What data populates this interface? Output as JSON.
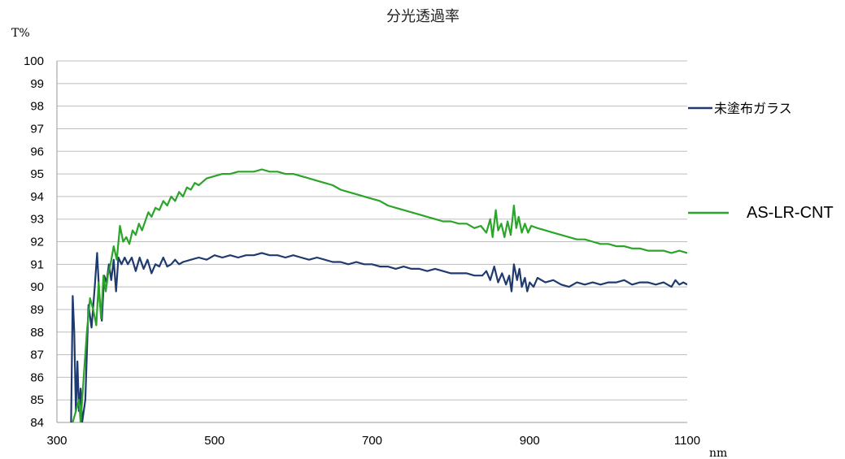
{
  "chart_data": {
    "type": "line",
    "title": "分光透過率",
    "ylabel": "T%",
    "xlabel": "nm",
    "xlim": [
      300,
      1100
    ],
    "ylim": [
      84,
      100
    ],
    "x_ticks": [
      "300",
      "500",
      "700",
      "900",
      "1100"
    ],
    "y_ticks": [
      "84",
      "85",
      "86",
      "87",
      "88",
      "89",
      "90",
      "91",
      "92",
      "93",
      "94",
      "95",
      "96",
      "97",
      "98",
      "99",
      "100"
    ],
    "grid": "horizontal",
    "legend": "right",
    "series": [
      {
        "name": "未塗布ガラス",
        "color": "#1f3a6e",
        "points": [
          [
            318,
            84
          ],
          [
            320,
            89.6
          ],
          [
            322,
            88.0
          ],
          [
            324,
            84.5
          ],
          [
            326,
            86.7
          ],
          [
            328,
            84.5
          ],
          [
            330,
            85.5
          ],
          [
            332,
            84
          ],
          [
            336,
            85.0
          ],
          [
            340,
            89.2
          ],
          [
            344,
            88.2
          ],
          [
            348,
            90.0
          ],
          [
            351,
            91.5
          ],
          [
            354,
            89.5
          ],
          [
            357,
            88.5
          ],
          [
            360,
            90.5
          ],
          [
            363,
            90.2
          ],
          [
            366,
            91.0
          ],
          [
            369,
            90.3
          ],
          [
            372,
            91.2
          ],
          [
            375,
            89.8
          ],
          [
            378,
            91.3
          ],
          [
            382,
            91.0
          ],
          [
            386,
            91.3
          ],
          [
            390,
            91.0
          ],
          [
            395,
            91.3
          ],
          [
            400,
            90.7
          ],
          [
            405,
            91.3
          ],
          [
            410,
            90.8
          ],
          [
            415,
            91.2
          ],
          [
            420,
            90.6
          ],
          [
            425,
            91.0
          ],
          [
            430,
            90.9
          ],
          [
            435,
            91.3
          ],
          [
            440,
            90.9
          ],
          [
            445,
            91.0
          ],
          [
            450,
            91.2
          ],
          [
            455,
            91.0
          ],
          [
            460,
            91.1
          ],
          [
            470,
            91.2
          ],
          [
            480,
            91.3
          ],
          [
            490,
            91.2
          ],
          [
            500,
            91.4
          ],
          [
            510,
            91.3
          ],
          [
            520,
            91.4
          ],
          [
            530,
            91.3
          ],
          [
            540,
            91.4
          ],
          [
            550,
            91.4
          ],
          [
            560,
            91.5
          ],
          [
            570,
            91.4
          ],
          [
            580,
            91.4
          ],
          [
            590,
            91.3
          ],
          [
            600,
            91.4
          ],
          [
            610,
            91.3
          ],
          [
            620,
            91.2
          ],
          [
            630,
            91.3
          ],
          [
            640,
            91.2
          ],
          [
            650,
            91.1
          ],
          [
            660,
            91.1
          ],
          [
            670,
            91.0
          ],
          [
            680,
            91.1
          ],
          [
            690,
            91.0
          ],
          [
            700,
            91.0
          ],
          [
            710,
            90.9
          ],
          [
            720,
            90.9
          ],
          [
            730,
            90.8
          ],
          [
            740,
            90.9
          ],
          [
            750,
            90.8
          ],
          [
            760,
            90.8
          ],
          [
            770,
            90.7
          ],
          [
            780,
            90.8
          ],
          [
            790,
            90.7
          ],
          [
            800,
            90.6
          ],
          [
            810,
            90.6
          ],
          [
            820,
            90.6
          ],
          [
            830,
            90.5
          ],
          [
            840,
            90.5
          ],
          [
            845,
            90.7
          ],
          [
            850,
            90.3
          ],
          [
            855,
            90.9
          ],
          [
            860,
            90.2
          ],
          [
            865,
            90.6
          ],
          [
            870,
            90.1
          ],
          [
            874,
            90.5
          ],
          [
            877,
            89.8
          ],
          [
            880,
            91.0
          ],
          [
            884,
            90.3
          ],
          [
            887,
            90.8
          ],
          [
            890,
            90.0
          ],
          [
            894,
            90.4
          ],
          [
            897,
            89.8
          ],
          [
            900,
            90.2
          ],
          [
            905,
            90.0
          ],
          [
            910,
            90.4
          ],
          [
            920,
            90.2
          ],
          [
            930,
            90.3
          ],
          [
            940,
            90.1
          ],
          [
            950,
            90.0
          ],
          [
            960,
            90.2
          ],
          [
            970,
            90.1
          ],
          [
            980,
            90.2
          ],
          [
            990,
            90.1
          ],
          [
            1000,
            90.2
          ],
          [
            1010,
            90.2
          ],
          [
            1020,
            90.3
          ],
          [
            1030,
            90.1
          ],
          [
            1040,
            90.2
          ],
          [
            1050,
            90.2
          ],
          [
            1060,
            90.1
          ],
          [
            1070,
            90.2
          ],
          [
            1080,
            90.0
          ],
          [
            1085,
            90.3
          ],
          [
            1090,
            90.1
          ],
          [
            1095,
            90.2
          ],
          [
            1100,
            90.1
          ]
        ]
      },
      {
        "name": "AS-LR-CNT",
        "color": "#2aa52a",
        "points": [
          [
            320,
            84
          ],
          [
            324,
            84.5
          ],
          [
            328,
            85.0
          ],
          [
            330,
            84
          ],
          [
            334,
            86.0
          ],
          [
            338,
            88.0
          ],
          [
            342,
            89.5
          ],
          [
            346,
            89.0
          ],
          [
            350,
            88.3
          ],
          [
            353,
            90.2
          ],
          [
            356,
            88.6
          ],
          [
            359,
            90.5
          ],
          [
            362,
            89.8
          ],
          [
            365,
            90.6
          ],
          [
            368,
            91.0
          ],
          [
            372,
            91.8
          ],
          [
            376,
            91.2
          ],
          [
            380,
            92.7
          ],
          [
            384,
            92.0
          ],
          [
            388,
            92.2
          ],
          [
            392,
            91.9
          ],
          [
            396,
            92.5
          ],
          [
            400,
            92.3
          ],
          [
            404,
            92.8
          ],
          [
            408,
            92.5
          ],
          [
            412,
            92.9
          ],
          [
            416,
            93.3
          ],
          [
            420,
            93.1
          ],
          [
            425,
            93.5
          ],
          [
            430,
            93.4
          ],
          [
            435,
            93.8
          ],
          [
            440,
            93.6
          ],
          [
            445,
            94.0
          ],
          [
            450,
            93.8
          ],
          [
            455,
            94.2
          ],
          [
            460,
            94.0
          ],
          [
            465,
            94.4
          ],
          [
            470,
            94.3
          ],
          [
            475,
            94.6
          ],
          [
            480,
            94.5
          ],
          [
            490,
            94.8
          ],
          [
            500,
            94.9
          ],
          [
            510,
            95.0
          ],
          [
            520,
            95.0
          ],
          [
            530,
            95.1
          ],
          [
            540,
            95.1
          ],
          [
            550,
            95.1
          ],
          [
            560,
            95.2
          ],
          [
            570,
            95.1
          ],
          [
            580,
            95.1
          ],
          [
            590,
            95.0
          ],
          [
            600,
            95.0
          ],
          [
            610,
            94.9
          ],
          [
            620,
            94.8
          ],
          [
            630,
            94.7
          ],
          [
            640,
            94.6
          ],
          [
            650,
            94.5
          ],
          [
            660,
            94.3
          ],
          [
            670,
            94.2
          ],
          [
            680,
            94.1
          ],
          [
            690,
            94.0
          ],
          [
            700,
            93.9
          ],
          [
            710,
            93.8
          ],
          [
            720,
            93.6
          ],
          [
            730,
            93.5
          ],
          [
            740,
            93.4
          ],
          [
            750,
            93.3
          ],
          [
            760,
            93.2
          ],
          [
            770,
            93.1
          ],
          [
            780,
            93.0
          ],
          [
            790,
            92.9
          ],
          [
            800,
            92.9
          ],
          [
            810,
            92.8
          ],
          [
            820,
            92.8
          ],
          [
            830,
            92.6
          ],
          [
            838,
            92.7
          ],
          [
            845,
            92.4
          ],
          [
            850,
            93.0
          ],
          [
            853,
            92.2
          ],
          [
            857,
            93.4
          ],
          [
            860,
            92.5
          ],
          [
            864,
            92.8
          ],
          [
            868,
            92.2
          ],
          [
            872,
            92.9
          ],
          [
            876,
            92.3
          ],
          [
            880,
            93.6
          ],
          [
            883,
            92.6
          ],
          [
            886,
            93.1
          ],
          [
            890,
            92.4
          ],
          [
            894,
            92.8
          ],
          [
            898,
            92.4
          ],
          [
            902,
            92.7
          ],
          [
            910,
            92.6
          ],
          [
            920,
            92.5
          ],
          [
            930,
            92.4
          ],
          [
            940,
            92.3
          ],
          [
            950,
            92.2
          ],
          [
            960,
            92.1
          ],
          [
            970,
            92.1
          ],
          [
            980,
            92.0
          ],
          [
            990,
            91.9
          ],
          [
            1000,
            91.9
          ],
          [
            1010,
            91.8
          ],
          [
            1020,
            91.8
          ],
          [
            1030,
            91.7
          ],
          [
            1040,
            91.7
          ],
          [
            1050,
            91.6
          ],
          [
            1060,
            91.6
          ],
          [
            1070,
            91.6
          ],
          [
            1080,
            91.5
          ],
          [
            1090,
            91.6
          ],
          [
            1100,
            91.5
          ]
        ]
      }
    ]
  }
}
